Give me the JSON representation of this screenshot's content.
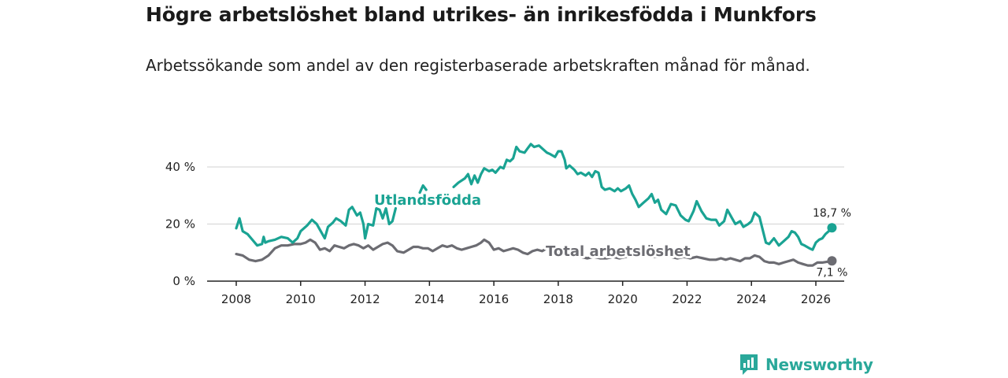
{
  "title": "Högre arbetslöshet bland utrikes- än inrikesfödda i Munkfors",
  "subtitle": "Arbetssökande som andel av den registerbaserade arbetskraften månad för månad.",
  "brand": {
    "name": "Newsworthy",
    "color": "#2aa89a"
  },
  "chart_data": {
    "type": "line",
    "xlim": [
      2008,
      2026
    ],
    "ylim": [
      0,
      50
    ],
    "x_ticks": [
      2008,
      2010,
      2012,
      2014,
      2016,
      2018,
      2020,
      2022,
      2024,
      2026
    ],
    "x_tick_labels": [
      "2008",
      "2010",
      "2012",
      "2014",
      "2016",
      "2018",
      "2020",
      "2022",
      "2024",
      "2026"
    ],
    "y_ticks": [
      0,
      20,
      40
    ],
    "y_tick_labels": [
      "0 %",
      "20 %",
      "40 %"
    ],
    "grid": true,
    "series": [
      {
        "name": "Utlandsfödda",
        "color": "#1aa393",
        "end_label": "18,7 %",
        "points": [
          [
            2008.0,
            18.5
          ],
          [
            2008.1,
            22.0
          ],
          [
            2008.2,
            17.5
          ],
          [
            2008.35,
            16.5
          ],
          [
            2008.5,
            14.5
          ],
          [
            2008.65,
            12.5
          ],
          [
            2008.8,
            13.0
          ],
          [
            2008.85,
            15.5
          ],
          [
            2008.9,
            13.5
          ],
          [
            2009.0,
            14.0
          ],
          [
            2009.2,
            14.5
          ],
          [
            2009.4,
            15.5
          ],
          [
            2009.6,
            15.0
          ],
          [
            2009.75,
            13.5
          ],
          [
            2009.9,
            15.0
          ],
          [
            2010.0,
            17.5
          ],
          [
            2010.2,
            19.5
          ],
          [
            2010.35,
            21.5
          ],
          [
            2010.5,
            20.0
          ],
          [
            2010.6,
            18.0
          ],
          [
            2010.75,
            15.0
          ],
          [
            2010.85,
            19.0
          ],
          [
            2011.0,
            20.5
          ],
          [
            2011.1,
            22.0
          ],
          [
            2011.25,
            21.0
          ],
          [
            2011.4,
            19.5
          ],
          [
            2011.5,
            25.0
          ],
          [
            2011.6,
            26.0
          ],
          [
            2011.75,
            23.0
          ],
          [
            2011.85,
            24.0
          ],
          [
            2011.95,
            20.0
          ],
          [
            2012.0,
            15.0
          ],
          [
            2012.1,
            20.0
          ],
          [
            2012.25,
            19.5
          ],
          [
            2012.35,
            25.5
          ],
          [
            2012.45,
            25.0
          ],
          [
            2012.55,
            22.0
          ],
          [
            2012.65,
            25.5
          ],
          [
            2012.75,
            20.0
          ],
          [
            2012.85,
            21.0
          ],
          [
            2012.95,
            25.5
          ],
          null,
          [
            2013.7,
            31.0
          ],
          [
            2013.8,
            33.5
          ],
          [
            2013.9,
            32.0
          ],
          null,
          [
            2014.75,
            33.0
          ],
          [
            2014.9,
            34.5
          ],
          [
            2015.1,
            36.0
          ],
          [
            2015.2,
            37.5
          ],
          [
            2015.3,
            34.0
          ],
          [
            2015.4,
            37.0
          ],
          [
            2015.5,
            34.5
          ],
          [
            2015.6,
            37.5
          ],
          [
            2015.7,
            39.5
          ],
          [
            2015.85,
            38.5
          ],
          [
            2015.95,
            39.0
          ],
          [
            2016.05,
            38.0
          ],
          [
            2016.2,
            40.0
          ],
          [
            2016.3,
            39.5
          ],
          [
            2016.4,
            42.5
          ],
          [
            2016.5,
            42.0
          ],
          [
            2016.6,
            43.0
          ],
          [
            2016.7,
            47.0
          ],
          [
            2016.8,
            45.5
          ],
          [
            2016.95,
            45.0
          ],
          [
            2017.05,
            46.5
          ],
          [
            2017.15,
            48.0
          ],
          [
            2017.25,
            47.0
          ],
          [
            2017.4,
            47.5
          ],
          [
            2017.5,
            46.5
          ],
          [
            2017.65,
            45.0
          ],
          [
            2017.75,
            44.5
          ],
          [
            2017.9,
            43.5
          ],
          [
            2018.0,
            45.5
          ],
          [
            2018.1,
            45.5
          ],
          [
            2018.2,
            42.5
          ],
          [
            2018.25,
            39.5
          ],
          [
            2018.35,
            40.5
          ],
          [
            2018.5,
            39.0
          ],
          [
            2018.6,
            37.5
          ],
          [
            2018.7,
            38.0
          ],
          [
            2018.85,
            37.0
          ],
          [
            2018.95,
            38.0
          ],
          [
            2019.05,
            36.5
          ],
          [
            2019.15,
            38.5
          ],
          [
            2019.25,
            38.0
          ],
          [
            2019.35,
            33.0
          ],
          [
            2019.45,
            32.0
          ],
          [
            2019.6,
            32.5
          ],
          [
            2019.75,
            31.5
          ],
          [
            2019.85,
            32.5
          ],
          [
            2019.95,
            31.5
          ],
          [
            2020.1,
            32.5
          ],
          [
            2020.2,
            33.5
          ],
          [
            2020.3,
            30.5
          ],
          [
            2020.4,
            28.5
          ],
          [
            2020.5,
            26.0
          ],
          [
            2020.65,
            27.5
          ],
          [
            2020.8,
            29.0
          ],
          [
            2020.9,
            30.5
          ],
          [
            2021.0,
            27.5
          ],
          [
            2021.1,
            28.5
          ],
          [
            2021.2,
            25.0
          ],
          [
            2021.35,
            23.5
          ],
          [
            2021.5,
            27.0
          ],
          [
            2021.65,
            26.5
          ],
          [
            2021.8,
            23.0
          ],
          [
            2021.95,
            21.5
          ],
          [
            2022.05,
            21.0
          ],
          [
            2022.2,
            24.5
          ],
          [
            2022.3,
            28.0
          ],
          [
            2022.45,
            24.5
          ],
          [
            2022.6,
            22.0
          ],
          [
            2022.75,
            21.5
          ],
          [
            2022.9,
            21.5
          ],
          [
            2023.0,
            19.5
          ],
          [
            2023.15,
            21.0
          ],
          [
            2023.25,
            25.0
          ],
          [
            2023.4,
            22.0
          ],
          [
            2023.5,
            20.0
          ],
          [
            2023.65,
            21.0
          ],
          [
            2023.75,
            19.0
          ],
          [
            2023.9,
            20.0
          ],
          [
            2024.0,
            21.0
          ],
          [
            2024.1,
            24.0
          ],
          [
            2024.25,
            22.5
          ],
          [
            2024.35,
            18.0
          ],
          [
            2024.45,
            13.5
          ],
          [
            2024.55,
            13.0
          ],
          [
            2024.7,
            15.0
          ],
          [
            2024.85,
            12.5
          ],
          [
            2025.0,
            14.0
          ],
          [
            2025.15,
            15.5
          ],
          [
            2025.25,
            17.5
          ],
          [
            2025.35,
            17.0
          ],
          [
            2025.45,
            15.5
          ],
          [
            2025.55,
            13.0
          ],
          [
            2025.65,
            12.5
          ],
          [
            2025.8,
            11.5
          ],
          [
            2025.9,
            11.0
          ],
          [
            2026.0,
            13.5
          ],
          [
            2026.1,
            14.5
          ],
          [
            2026.2,
            15.0
          ],
          [
            2026.3,
            16.5
          ],
          [
            2026.4,
            17.5
          ],
          [
            2026.5,
            18.7
          ]
        ]
      },
      {
        "name": "Total arbetslöshet",
        "color": "#6c6c72",
        "end_label": "7,1 %",
        "points": [
          [
            2008.0,
            9.5
          ],
          [
            2008.2,
            9.0
          ],
          [
            2008.4,
            7.5
          ],
          [
            2008.6,
            7.0
          ],
          [
            2008.8,
            7.5
          ],
          [
            2009.0,
            9.0
          ],
          [
            2009.2,
            11.5
          ],
          [
            2009.4,
            12.5
          ],
          [
            2009.6,
            12.5
          ],
          [
            2009.8,
            13.0
          ],
          [
            2010.0,
            13.0
          ],
          [
            2010.15,
            13.5
          ],
          [
            2010.3,
            14.5
          ],
          [
            2010.45,
            13.5
          ],
          [
            2010.6,
            11.0
          ],
          [
            2010.75,
            11.5
          ],
          [
            2010.9,
            10.5
          ],
          [
            2011.05,
            12.5
          ],
          [
            2011.2,
            12.0
          ],
          [
            2011.35,
            11.5
          ],
          [
            2011.5,
            12.5
          ],
          [
            2011.65,
            13.0
          ],
          [
            2011.8,
            12.5
          ],
          [
            2011.95,
            11.5
          ],
          [
            2012.1,
            12.5
          ],
          [
            2012.25,
            11.0
          ],
          [
            2012.4,
            12.0
          ],
          [
            2012.55,
            13.0
          ],
          [
            2012.7,
            13.5
          ],
          [
            2012.85,
            12.5
          ],
          [
            2013.0,
            10.5
          ],
          [
            2013.2,
            10.0
          ],
          [
            2013.35,
            11.0
          ],
          [
            2013.5,
            12.0
          ],
          [
            2013.65,
            12.0
          ],
          [
            2013.8,
            11.5
          ],
          [
            2013.95,
            11.5
          ],
          [
            2014.1,
            10.5
          ],
          [
            2014.25,
            11.5
          ],
          [
            2014.4,
            12.5
          ],
          [
            2014.55,
            12.0
          ],
          [
            2014.7,
            12.5
          ],
          [
            2014.85,
            11.5
          ],
          [
            2015.0,
            11.0
          ],
          [
            2015.15,
            11.5
          ],
          [
            2015.3,
            12.0
          ],
          [
            2015.45,
            12.5
          ],
          [
            2015.6,
            13.5
          ],
          [
            2015.7,
            14.5
          ],
          [
            2015.85,
            13.5
          ],
          [
            2016.0,
            11.0
          ],
          [
            2016.15,
            11.5
          ],
          [
            2016.3,
            10.5
          ],
          [
            2016.45,
            11.0
          ],
          [
            2016.6,
            11.5
          ],
          [
            2016.75,
            11.0
          ],
          [
            2016.9,
            10.0
          ],
          [
            2017.05,
            9.5
          ],
          [
            2017.2,
            10.5
          ],
          [
            2017.35,
            11.0
          ],
          [
            2017.5,
            10.5
          ],
          [
            2017.65,
            11.5
          ],
          [
            2017.8,
            11.0
          ],
          [
            2017.95,
            10.0
          ],
          [
            2018.1,
            10.0
          ],
          [
            2018.3,
            9.5
          ],
          [
            2018.5,
            9.0
          ],
          [
            2018.7,
            8.5
          ],
          [
            2018.9,
            8.0
          ],
          [
            2019.1,
            8.5
          ],
          [
            2019.3,
            8.0
          ],
          [
            2019.5,
            8.0
          ],
          [
            2019.7,
            8.5
          ],
          [
            2019.9,
            8.0
          ],
          [
            2020.1,
            8.5
          ],
          [
            2020.3,
            9.0
          ],
          [
            2020.5,
            9.5
          ],
          [
            2020.7,
            9.0
          ],
          [
            2020.9,
            8.5
          ],
          [
            2021.1,
            8.5
          ],
          [
            2021.3,
            9.0
          ],
          [
            2021.5,
            8.5
          ],
          [
            2021.7,
            8.0
          ],
          [
            2021.9,
            8.5
          ],
          [
            2022.1,
            8.0
          ],
          [
            2022.3,
            8.5
          ],
          [
            2022.5,
            8.0
          ],
          [
            2022.7,
            7.5
          ],
          [
            2022.9,
            7.5
          ],
          [
            2023.05,
            8.0
          ],
          [
            2023.2,
            7.5
          ],
          [
            2023.35,
            8.0
          ],
          [
            2023.5,
            7.5
          ],
          [
            2023.65,
            7.0
          ],
          [
            2023.8,
            8.0
          ],
          [
            2023.95,
            8.0
          ],
          [
            2024.1,
            9.0
          ],
          [
            2024.25,
            8.5
          ],
          [
            2024.4,
            7.0
          ],
          [
            2024.55,
            6.5
          ],
          [
            2024.7,
            6.5
          ],
          [
            2024.85,
            6.0
          ],
          [
            2025.0,
            6.5
          ],
          [
            2025.15,
            7.0
          ],
          [
            2025.3,
            7.5
          ],
          [
            2025.45,
            6.5
          ],
          [
            2025.6,
            6.0
          ],
          [
            2025.75,
            5.5
          ],
          [
            2025.9,
            5.5
          ],
          [
            2026.05,
            6.5
          ],
          [
            2026.2,
            6.5
          ],
          [
            2026.35,
            6.8
          ],
          [
            2026.5,
            7.1
          ]
        ]
      }
    ]
  }
}
